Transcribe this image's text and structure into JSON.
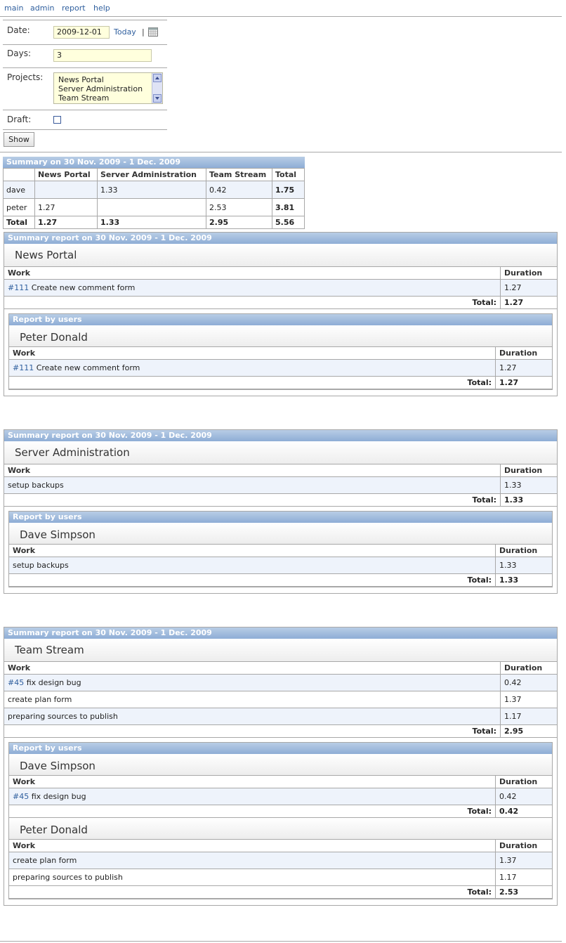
{
  "nav": {
    "items": [
      "main",
      "admin",
      "report",
      "help"
    ]
  },
  "filters": {
    "date_label": "Date:",
    "date_value": "2009-12-01",
    "today_link": "Today",
    "today_sep": "|",
    "days_label": "Days:",
    "days_value": "3",
    "projects_label": "Projects:",
    "projects_options": [
      "News Portal",
      "Server Administration",
      "Team Stream"
    ],
    "draft_label": "Draft:",
    "show_button": "Show"
  },
  "summary": {
    "title": "Summary on 30 Nov. 2009 - 1 Dec. 2009",
    "columns": [
      "",
      "News Portal",
      "Server Administration",
      "Team Stream",
      "Total"
    ],
    "rows": [
      [
        "dave",
        "",
        "1.33",
        "0.42",
        "1.75"
      ],
      [
        "peter",
        "1.27",
        "",
        "2.53",
        "3.81"
      ]
    ],
    "total_row": [
      "Total",
      "1.27",
      "1.33",
      "2.95",
      "5.56"
    ]
  },
  "labels": {
    "work": "Work",
    "duration": "Duration",
    "total": "Total:",
    "report_by_users": "Report by users"
  },
  "reports": [
    {
      "title": "Summary report on 30 Nov. 2009 - 1 Dec. 2009",
      "project": "News Portal",
      "works": [
        {
          "ticket": "#111",
          "text": " Create new comment form",
          "duration": "1.27"
        }
      ],
      "total": "1.27",
      "users": [
        {
          "name": "Peter Donald",
          "works": [
            {
              "ticket": "#111",
              "text": " Create new comment form",
              "duration": "1.27"
            }
          ],
          "total": "1.27"
        }
      ]
    },
    {
      "title": "Summary report on 30 Nov. 2009 - 1 Dec. 2009",
      "project": "Server Administration",
      "works": [
        {
          "ticket": "",
          "text": "setup backups",
          "duration": "1.33"
        }
      ],
      "total": "1.33",
      "users": [
        {
          "name": "Dave Simpson",
          "works": [
            {
              "ticket": "",
              "text": "setup backups",
              "duration": "1.33"
            }
          ],
          "total": "1.33"
        }
      ]
    },
    {
      "title": "Summary report on 30 Nov. 2009 - 1 Dec. 2009",
      "project": "Team Stream",
      "works": [
        {
          "ticket": "#45",
          "text": " fix design bug",
          "duration": "0.42"
        },
        {
          "ticket": "",
          "text": "create plan form",
          "duration": "1.37"
        },
        {
          "ticket": "",
          "text": "preparing sources to publish",
          "duration": "1.17"
        }
      ],
      "total": "2.95",
      "users": [
        {
          "name": "Dave Simpson",
          "works": [
            {
              "ticket": "#45",
              "text": " fix design bug",
              "duration": "0.42"
            }
          ],
          "total": "0.42"
        },
        {
          "name": "Peter Donald",
          "works": [
            {
              "ticket": "",
              "text": "create plan form",
              "duration": "1.37"
            },
            {
              "ticket": "",
              "text": "preparing sources to publish",
              "duration": "1.17"
            }
          ],
          "total": "2.53"
        }
      ]
    }
  ]
}
